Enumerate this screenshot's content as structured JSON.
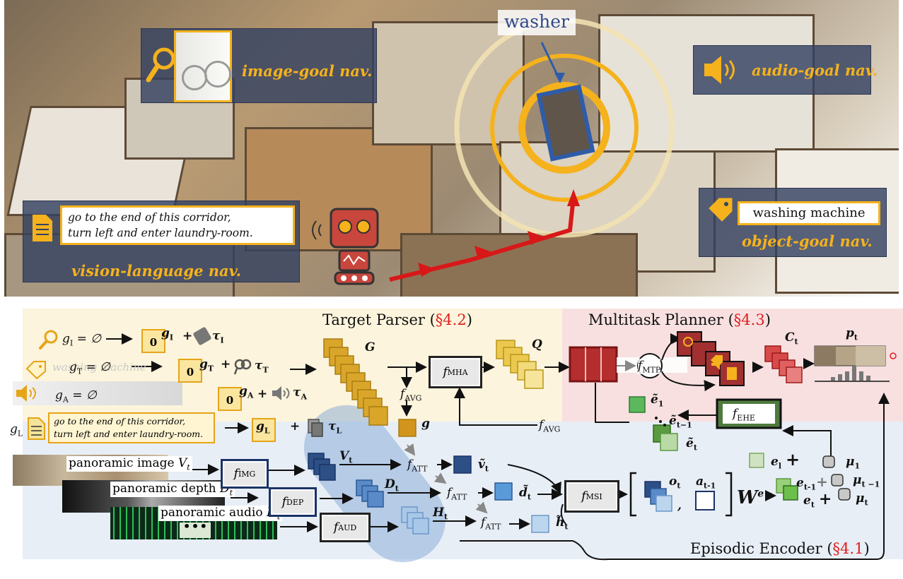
{
  "scene": {
    "target_object": "washer",
    "image_goal": {
      "label": "image-goal nav.",
      "icon": "magnifier-icon"
    },
    "audio_goal": {
      "label": "audio-goal nav.",
      "icon": "speaker-icon"
    },
    "object_goal": {
      "label": "object-goal nav.",
      "object_name": "washing machine",
      "icon": "tag-icon"
    },
    "vln_goal": {
      "label": "vision-language nav.",
      "instruction_line1": "go to the end of this corridor,",
      "instruction_line2": "turn left and enter laundry-room.",
      "icon": "document-icon"
    },
    "colors": {
      "goal_yellow": "#f5b21c",
      "panel_blue": "#344262",
      "path_red": "#d81818",
      "robot_red": "#c8463c"
    }
  },
  "diagram": {
    "target_parser": {
      "title": "Target Parser (",
      "ref": "§4.2",
      "close": ")"
    },
    "multitask_planner": {
      "title": "Multitask Planner (",
      "ref": "§4.3",
      "close": ")"
    },
    "episodic_encoder": {
      "title": "Episodic Encoder (",
      "ref": "§4.1",
      "close": ")"
    },
    "goal_inputs": {
      "image": "= ∅",
      "text": "= ∅",
      "text_ghost": "washing machine",
      "audio": "= ∅",
      "vln_line1": "go to the end of this corridor,",
      "vln_line2": "turn left and enter laundry-room."
    },
    "panoramic": {
      "image": "panoramic image",
      "depth": "panoramic depth",
      "audio": "panoramic audio"
    }
  }
}
